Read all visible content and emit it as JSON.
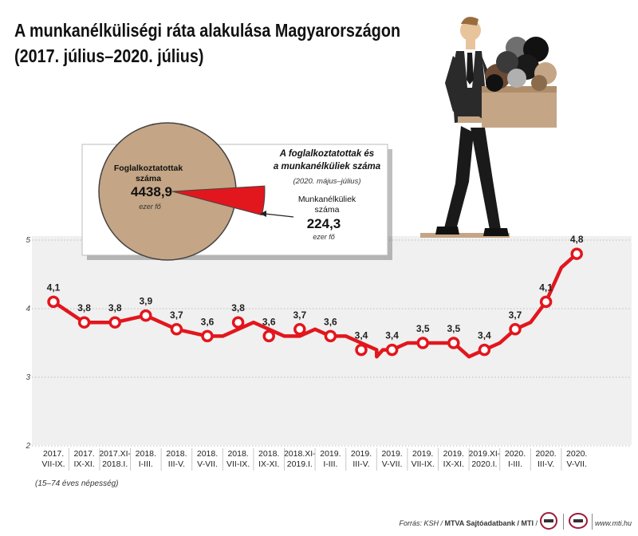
{
  "title": {
    "line1": "A munkanélküliségi ráta alakulása Magyarországon",
    "line2": "(2017. július–2020. július)"
  },
  "colors": {
    "series": "#e2161d",
    "pie_main": "#c4a585",
    "pie_slice": "#e2161d",
    "band_fill": "#f0f0f0",
    "grid": "#bdbdbd"
  },
  "chart_data": {
    "type": "line",
    "y_ticks": [
      "2",
      "3",
      "4",
      "5"
    ],
    "ylim": [
      2,
      5
    ],
    "grid": true,
    "categories": [
      [
        "2017.",
        "VII-IX."
      ],
      [
        "2017.",
        "IX-XI."
      ],
      [
        "2017.XI-",
        "2018.I."
      ],
      [
        "2018.",
        "I-III."
      ],
      [
        "2018.",
        "III-V."
      ],
      [
        "2018.",
        "V-VII."
      ],
      [
        "2018.",
        "VII-IX."
      ],
      [
        "2018.",
        "IX-XI."
      ],
      [
        "2018.XI-",
        "2019.I."
      ],
      [
        "2019.",
        "I-III."
      ],
      [
        "2019.",
        "III-V."
      ],
      [
        "2019.",
        "V-VII."
      ],
      [
        "2019.",
        "VII-IX."
      ],
      [
        "2019.",
        "IX-XI."
      ],
      [
        "2019.XI-",
        "2020.I."
      ],
      [
        "2020.",
        "I-III."
      ],
      [
        "2020.",
        "III-V."
      ],
      [
        "2020.",
        "V-VII."
      ]
    ],
    "series": [
      {
        "values": [
          4.1,
          3.8,
          3.8,
          3.9,
          3.7,
          3.6,
          3.8,
          3.6,
          3.7,
          3.6,
          3.4,
          3.4,
          3.5,
          3.5,
          3.4,
          3.7,
          4.1,
          4.8
        ],
        "labels": [
          "4,1",
          "3,8",
          "3,8",
          "3,9",
          "3,7",
          "3,6",
          "3,8",
          "3,6",
          "3,7",
          "3,6",
          "3,4",
          "3,4",
          "3,5",
          "3,5",
          "3,4",
          "3,7",
          "4,1",
          "4,8"
        ]
      }
    ],
    "path_values": [
      4.1,
      3.8,
      3.8,
      3.8,
      3.9,
      3.8,
      3.7,
      3.6,
      3.6,
      3.7,
      3.8,
      3.7,
      3.6,
      3.6,
      3.7,
      3.6,
      3.6,
      3.5,
      3.4,
      3.3,
      3.4,
      3.4,
      3.5,
      3.5,
      3.5,
      3.3,
      3.4,
      3.5,
      3.7,
      3.8,
      4.1,
      4.6,
      4.8
    ],
    "path_positions": [
      0,
      1,
      1.5,
      2,
      3,
      3.5,
      4,
      5,
      5.5,
      6,
      6.5,
      7,
      7.5,
      8,
      8.5,
      9,
      9.5,
      10,
      10.5,
      10.5,
      10.7,
      11,
      11.5,
      12,
      13,
      13.5,
      14,
      14.5,
      15,
      15.5,
      16,
      16.5,
      17
    ]
  },
  "pie": {
    "title_line1": "A foglalkoztatottak és",
    "title_line2": "a munkanélküliek száma",
    "period": "(2020. május–július)",
    "employed_label1": "Foglalkoztatottak",
    "employed_label2": "száma",
    "employed_value": "4438,9",
    "employed_unit": "ezer fő",
    "unemployed_label1": "Munkanélküliek",
    "unemployed_label2": "száma",
    "unemployed_value": "224,3",
    "unemployed_unit": "ezer fő",
    "employed_num": 4438.9,
    "unemployed_num": 224.3
  },
  "footer": {
    "note": "(15–74 éves népesség)",
    "source_prefix": "Forrás: KSH / ",
    "source_bold": "MTVA Sajtóadatbank / MTI",
    "source_suffix": " /",
    "url": "www.mti.hu"
  }
}
